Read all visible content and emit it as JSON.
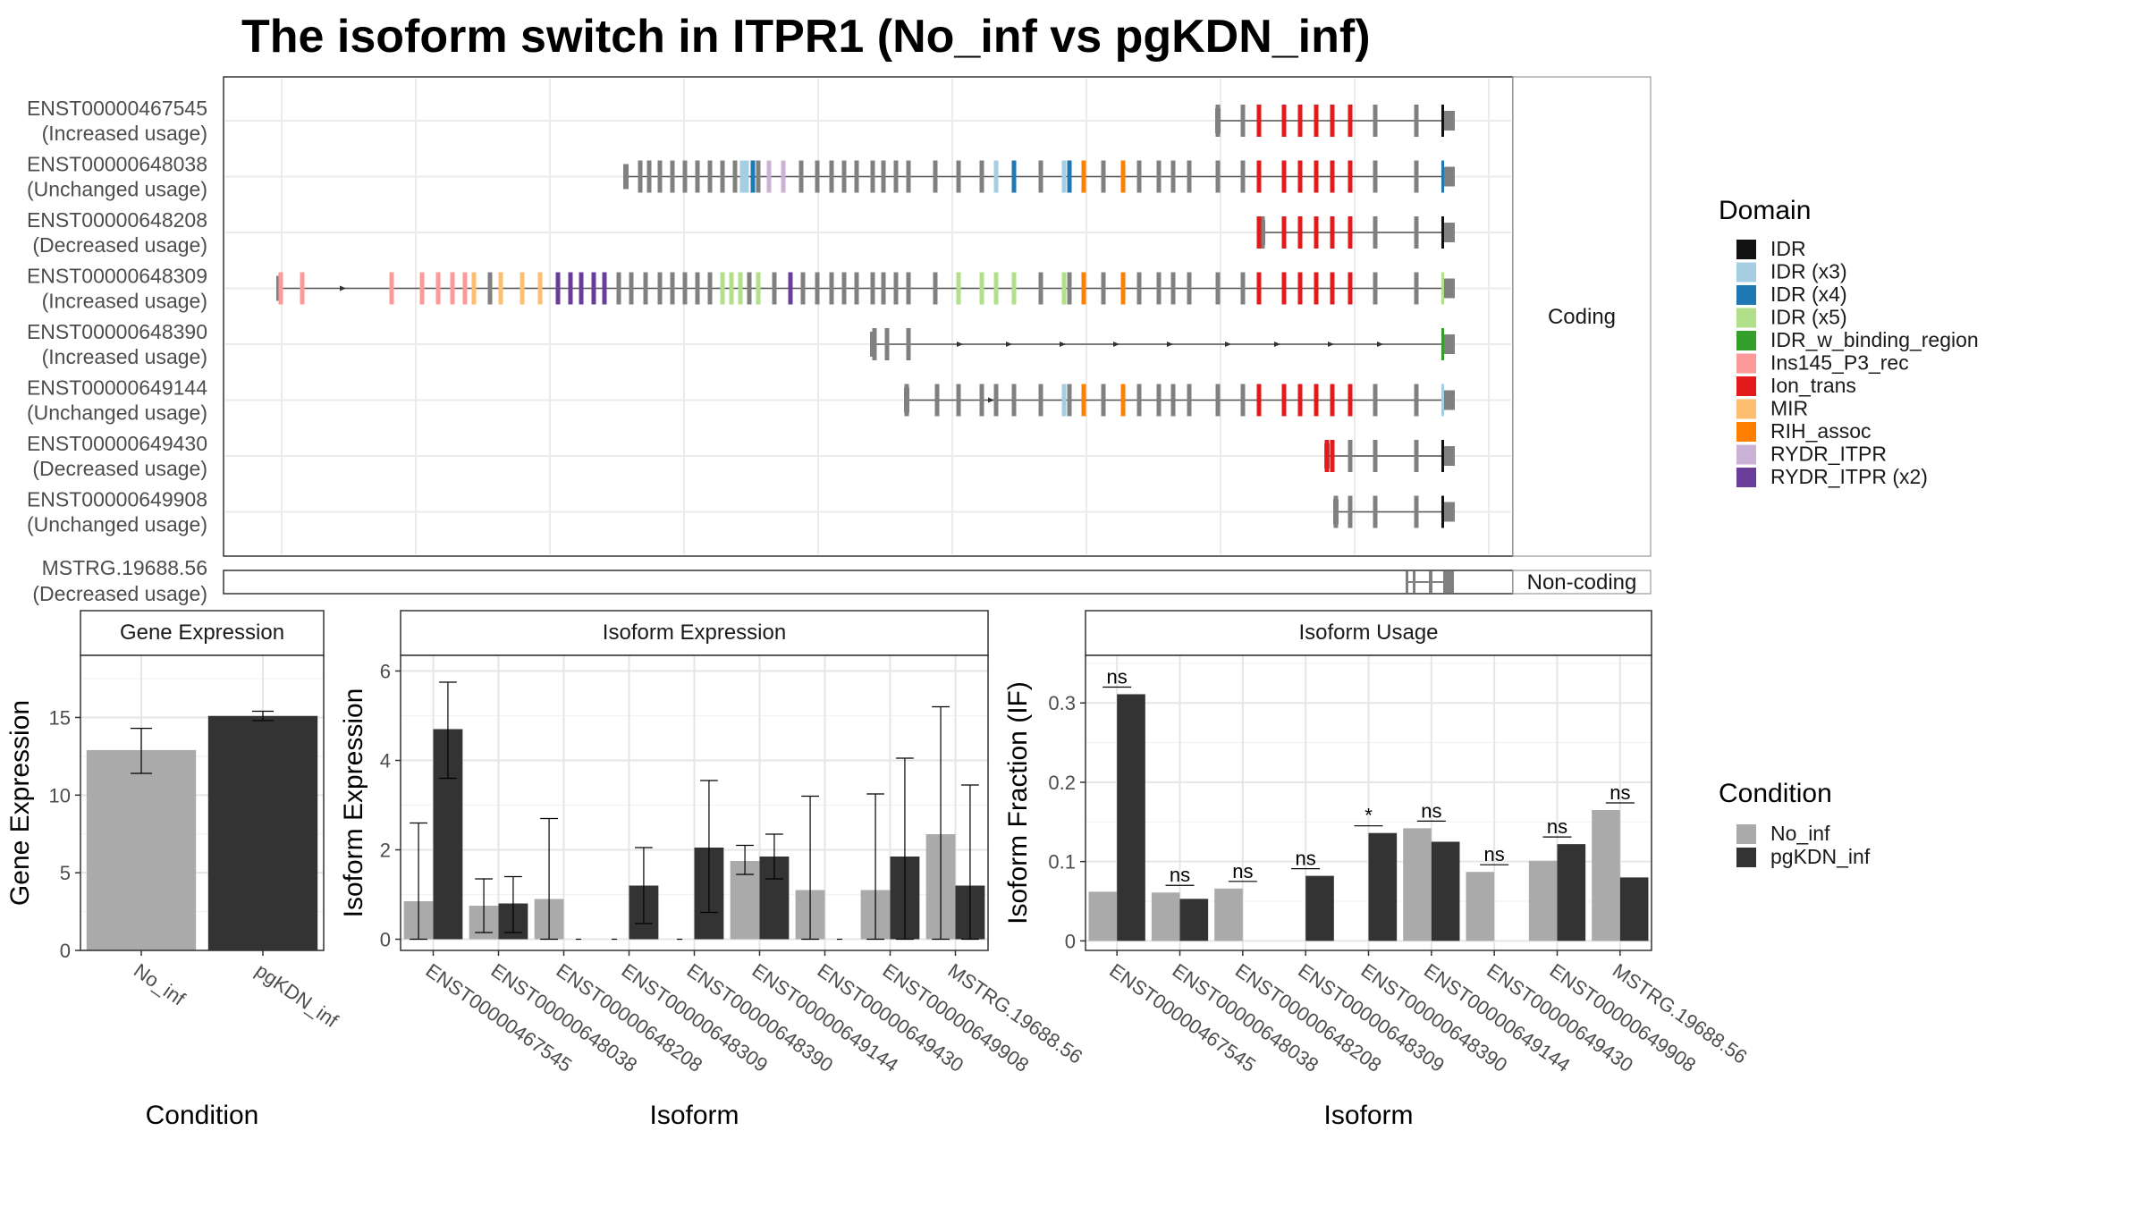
{
  "figure": {
    "title": "The isoform switch in ITPR1 (No_inf vs pgKDN_inf)"
  },
  "structure": {
    "coding_label": "Coding",
    "noncoding_label": "Non-coding",
    "transcripts": [
      {
        "id": "ENST00000467545",
        "status": "(Increased usage)"
      },
      {
        "id": "ENST00000648038",
        "status": "(Unchanged usage)"
      },
      {
        "id": "ENST00000648208",
        "status": "(Decreased usage)"
      },
      {
        "id": "ENST00000648309",
        "status": "(Increased usage)"
      },
      {
        "id": "ENST00000648390",
        "status": "(Increased usage)"
      },
      {
        "id": "ENST00000649144",
        "status": "(Unchanged usage)"
      },
      {
        "id": "ENST00000649430",
        "status": "(Decreased usage)"
      },
      {
        "id": "ENST00000649908",
        "status": "(Unchanged usage)"
      }
    ],
    "noncoding_transcripts": [
      {
        "id": "MSTRG.19688.56",
        "status": "(Decreased usage)"
      }
    ]
  },
  "legend_domain": {
    "title": "Domain",
    "items": [
      {
        "label": "IDR",
        "color": "#111111"
      },
      {
        "label": "IDR (x3)",
        "color": "#a6cee3"
      },
      {
        "label": "IDR (x4)",
        "color": "#1f78b4"
      },
      {
        "label": "IDR (x5)",
        "color": "#b2df8a"
      },
      {
        "label": "IDR_w_binding_region",
        "color": "#33a02c"
      },
      {
        "label": "Ins145_P3_rec",
        "color": "#fb9a99"
      },
      {
        "label": "Ion_trans",
        "color": "#e31a1c"
      },
      {
        "label": "MIR",
        "color": "#fdbf6f"
      },
      {
        "label": "RIH_assoc",
        "color": "#ff7f00"
      },
      {
        "label": "RYDR_ITPR",
        "color": "#cab2d6"
      },
      {
        "label": "RYDR_ITPR (x2)",
        "color": "#6a3d9a"
      }
    ]
  },
  "legend_condition": {
    "title": "Condition",
    "items": [
      {
        "label": "No_inf",
        "color": "#aaaaaa"
      },
      {
        "label": "pgKDN_inf",
        "color": "#333333"
      }
    ]
  },
  "chart_data": [
    {
      "type": "bar",
      "title": "Gene Expression",
      "xlabel": "Condition",
      "ylabel": "Gene Expression",
      "categories": [
        "No_inf",
        "pgKDN_inf"
      ],
      "values": [
        12.9,
        15.1
      ],
      "error_low": [
        11.4,
        14.8
      ],
      "error_high": [
        14.3,
        15.4
      ],
      "colors": [
        "#aaaaaa",
        "#333333"
      ],
      "ylim": [
        0,
        19
      ],
      "yticks": [
        0,
        5,
        10,
        15
      ]
    },
    {
      "type": "bar",
      "title": "Isoform Expression",
      "xlabel": "Isoform",
      "ylabel": "Isoform Expression",
      "categories": [
        "ENST00000467545",
        "ENST00000648038",
        "ENST00000648208",
        "ENST00000648309",
        "ENST00000648390",
        "ENST00000649144",
        "ENST00000649430",
        "ENST00000649908",
        "MSTRG.19688.56"
      ],
      "series": [
        {
          "name": "No_inf",
          "values": [
            0.85,
            0.75,
            0.9,
            0.0,
            0.0,
            1.75,
            1.1,
            1.1,
            2.35
          ],
          "error_low": [
            0.0,
            0.15,
            0.0,
            0.0,
            0.0,
            1.45,
            0.0,
            0.0,
            0.0
          ],
          "error_high": [
            2.6,
            1.35,
            2.7,
            0.0,
            0.0,
            2.1,
            3.2,
            3.25,
            5.2
          ]
        },
        {
          "name": "pgKDN_inf",
          "values": [
            4.7,
            0.8,
            0.0,
            1.2,
            2.05,
            1.85,
            0.0,
            1.85,
            1.2
          ],
          "error_low": [
            3.6,
            0.15,
            0.0,
            0.35,
            0.6,
            1.35,
            0.0,
            0.0,
            0.0
          ],
          "error_high": [
            5.75,
            1.4,
            0.0,
            2.05,
            3.55,
            2.35,
            0.0,
            4.05,
            3.45
          ]
        }
      ],
      "ylim": [
        -0.25,
        6.35
      ],
      "yticks": [
        0,
        2,
        4,
        6
      ]
    },
    {
      "type": "bar",
      "title": "Isoform Usage",
      "xlabel": "Isoform",
      "ylabel": "Isoform Fraction (IF)",
      "categories": [
        "ENST00000467545",
        "ENST00000648038",
        "ENST00000648208",
        "ENST00000648309",
        "ENST00000648390",
        "ENST00000649144",
        "ENST00000649430",
        "ENST00000649908",
        "MSTRG.19688.56"
      ],
      "series": [
        {
          "name": "No_inf",
          "values": [
            0.062,
            0.061,
            0.066,
            0.0,
            0.0,
            0.142,
            0.087,
            0.101,
            0.165
          ]
        },
        {
          "name": "pgKDN_inf",
          "values": [
            0.311,
            0.053,
            0.0,
            0.082,
            0.136,
            0.125,
            0.0,
            0.122,
            0.08
          ]
        }
      ],
      "significance": [
        "ns",
        "ns",
        "ns",
        "ns",
        "*",
        "ns",
        "ns",
        "ns",
        "ns"
      ],
      "ylim": [
        -0.012,
        0.36
      ],
      "yticks": [
        0.0,
        0.1,
        0.2,
        0.3
      ]
    }
  ]
}
